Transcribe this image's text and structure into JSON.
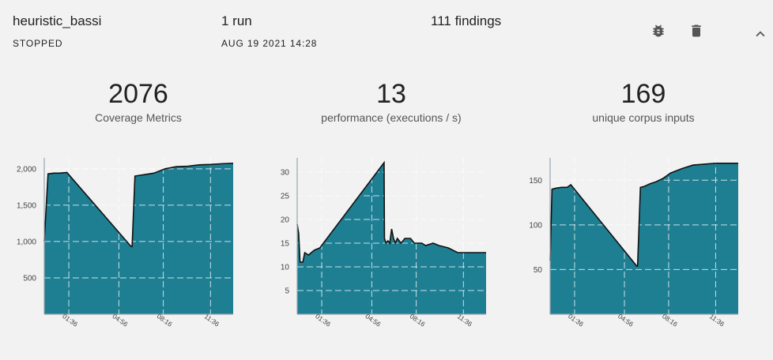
{
  "header": {
    "name": "heuristic_bassi",
    "status": "STOPPED",
    "runs": "1 run",
    "date": "AUG 19 2021 14:28",
    "findings": "111 findings"
  },
  "icons": {
    "bug": "bug-icon",
    "delete": "trash-icon",
    "collapse": "chevron-up-icon"
  },
  "colors": {
    "fill": "#1e7f93",
    "line": "#111111",
    "grid": "#ffffff",
    "axis": "#9aa5ad",
    "background": "#f2f2f2"
  },
  "metrics": [
    {
      "value": "2076",
      "label": "Coverage Metrics"
    },
    {
      "value": "13",
      "label": "performance (executions / s)"
    },
    {
      "value": "169",
      "label": "unique corpus inputs"
    }
  ],
  "chart_data": [
    {
      "type": "area",
      "title": "Coverage Metrics",
      "xlabel": "",
      "ylabel": "",
      "xlim": [
        0,
        100
      ],
      "ylim": [
        0,
        2150
      ],
      "xticks": [
        13,
        39.5,
        63,
        88
      ],
      "xtick_labels": [
        "01:36",
        "04:56",
        "08:16",
        "11:36"
      ],
      "yticks": [
        500,
        1000,
        1500,
        2000
      ],
      "ytick_labels": [
        "500",
        "1,000",
        "1,500",
        "2,000"
      ],
      "grid": true,
      "x": [
        0,
        2,
        5,
        8,
        12,
        46,
        46.5,
        48,
        53,
        58,
        64,
        70,
        76,
        82,
        88,
        94,
        100
      ],
      "y": [
        1000,
        1930,
        1940,
        1940,
        1950,
        930,
        930,
        1900,
        1920,
        1940,
        2000,
        2030,
        2035,
        2055,
        2060,
        2070,
        2076
      ]
    },
    {
      "type": "area",
      "title": "performance (executions / s)",
      "xlabel": "",
      "ylabel": "",
      "xlim": [
        0,
        100
      ],
      "ylim": [
        0,
        33
      ],
      "xticks": [
        13,
        39.5,
        63,
        88
      ],
      "xtick_labels": [
        "01:36",
        "04:56",
        "08:16",
        "11:36"
      ],
      "yticks": [
        5,
        10,
        15,
        20,
        25,
        30
      ],
      "ytick_labels": [
        "5",
        "10",
        "15",
        "20",
        "25",
        "30"
      ],
      "grid": true,
      "x": [
        0,
        0.8,
        1.5,
        3,
        4,
        6,
        9,
        12,
        46,
        46.2,
        47,
        48,
        49,
        50,
        50.5,
        51,
        52,
        53,
        55,
        57,
        60,
        62,
        64,
        66,
        68,
        72,
        75,
        80,
        85,
        90,
        100
      ],
      "y": [
        19,
        17,
        11,
        11,
        13,
        12.5,
        13.5,
        14,
        32,
        16,
        15,
        15.5,
        15,
        18,
        17,
        16,
        15,
        16,
        15,
        16,
        16,
        15,
        15,
        15,
        14.5,
        15,
        14.5,
        14,
        13,
        13,
        13
      ]
    },
    {
      "type": "area",
      "title": "unique corpus inputs",
      "xlabel": "",
      "ylabel": "",
      "xlim": [
        0,
        100
      ],
      "ylim": [
        0,
        175
      ],
      "xticks": [
        13,
        39.5,
        63,
        88
      ],
      "xtick_labels": [
        "01:36",
        "04:56",
        "08:16",
        "11:36"
      ],
      "yticks": [
        50,
        100,
        150
      ],
      "ytick_labels": [
        "50",
        "100",
        "150"
      ],
      "grid": true,
      "x": [
        0,
        1,
        3,
        6,
        9,
        11,
        46,
        46.5,
        48,
        50,
        53,
        56,
        60,
        64,
        70,
        76,
        82,
        88,
        94,
        100
      ],
      "y": [
        60,
        140,
        141,
        142,
        142,
        145,
        54,
        54,
        142,
        143,
        146,
        148,
        152,
        158,
        163,
        167,
        168,
        169,
        169,
        169
      ]
    }
  ]
}
